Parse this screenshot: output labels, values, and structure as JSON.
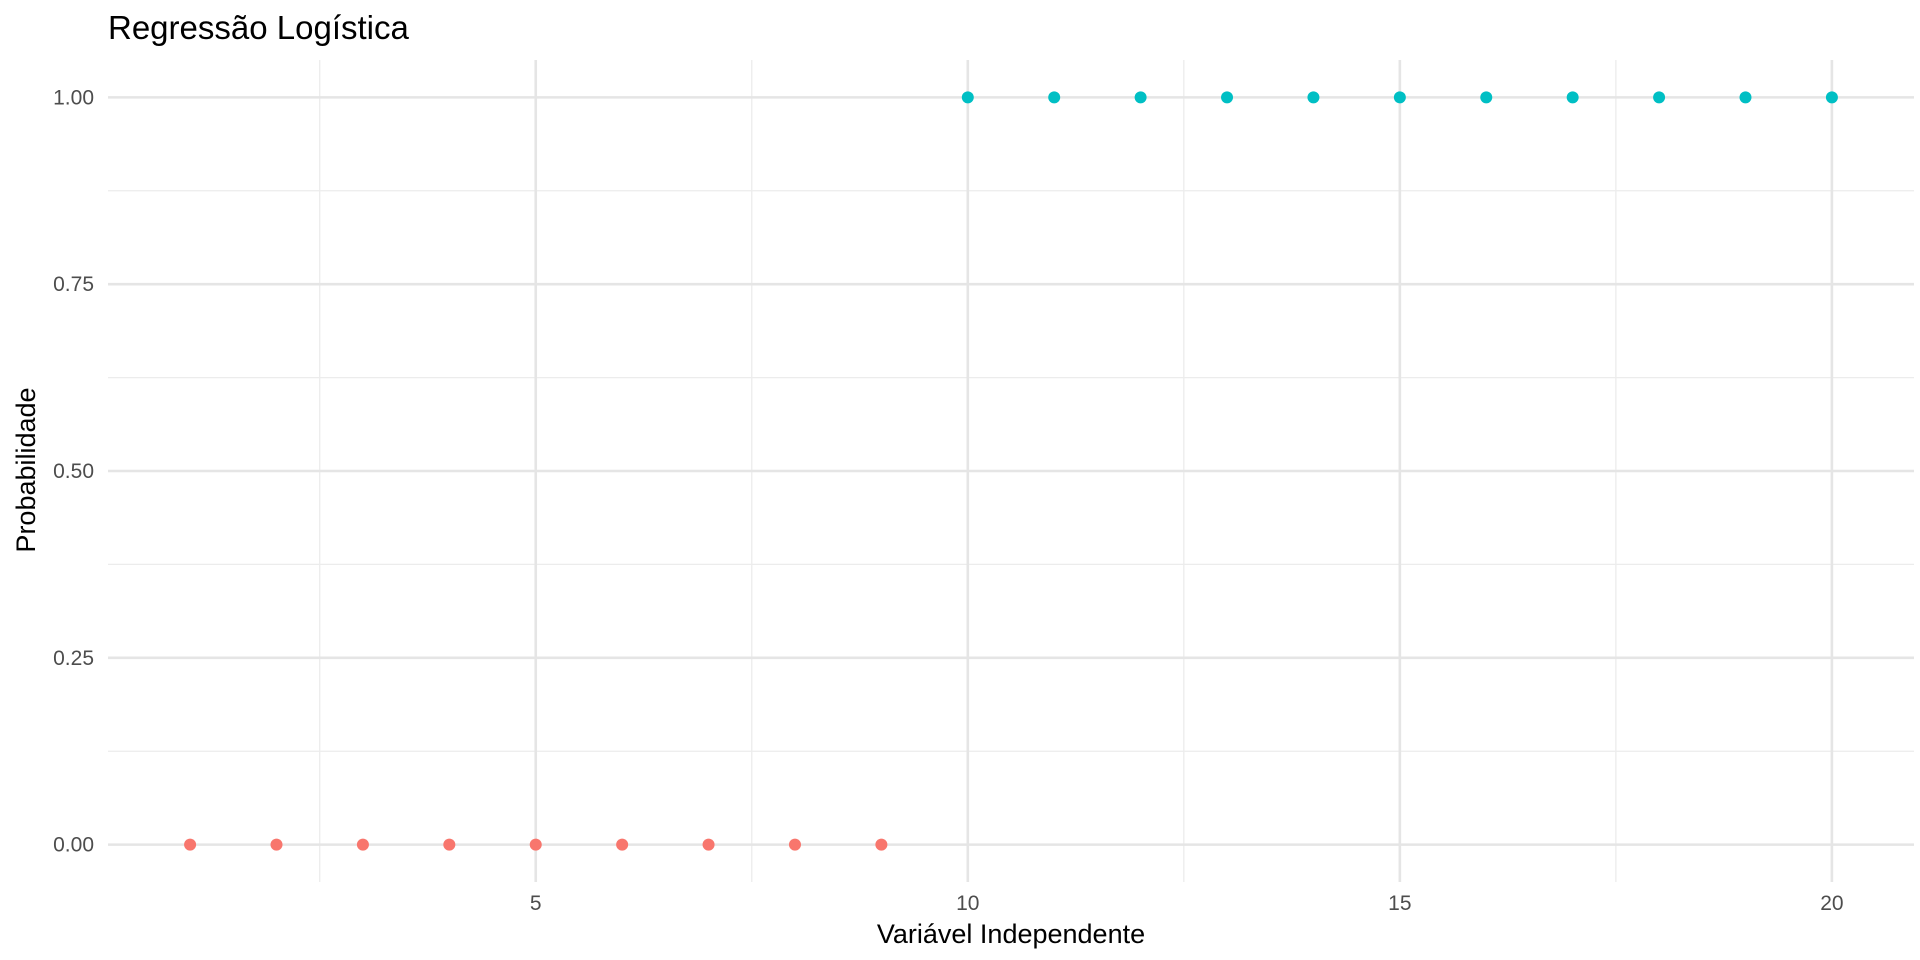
{
  "chart_data": {
    "type": "scatter",
    "title": "Regressão Logística",
    "xlabel": "Variável Independente",
    "ylabel": "Probabilidade",
    "xlim": [
      0.05,
      20.95
    ],
    "ylim": [
      -0.05,
      1.05
    ],
    "x_major_ticks": [
      5,
      10,
      15,
      20
    ],
    "x_minor_ticks": [
      2.5,
      7.5,
      12.5,
      17.5
    ],
    "y_major_ticks": [
      0,
      0.25,
      0.5,
      0.75,
      1
    ],
    "y_minor_ticks": [
      0.125,
      0.375,
      0.625,
      0.875
    ],
    "x_tick_labels": [
      "5",
      "10",
      "15",
      "20"
    ],
    "y_tick_labels": [
      "0.00",
      "0.25",
      "0.50",
      "0.75",
      "1.00"
    ],
    "grid": true,
    "legend": "none",
    "series": [
      {
        "name": "0",
        "color": "#F8766D",
        "x": [
          1,
          2,
          3,
          4,
          5,
          6,
          7,
          8,
          9
        ],
        "y": [
          0,
          0,
          0,
          0,
          0,
          0,
          0,
          0,
          0
        ]
      },
      {
        "name": "1",
        "color": "#00BFC4",
        "x": [
          10,
          11,
          12,
          13,
          14,
          15,
          16,
          17,
          18,
          19,
          20
        ],
        "y": [
          1,
          1,
          1,
          1,
          1,
          1,
          1,
          1,
          1,
          1,
          1
        ]
      }
    ]
  }
}
